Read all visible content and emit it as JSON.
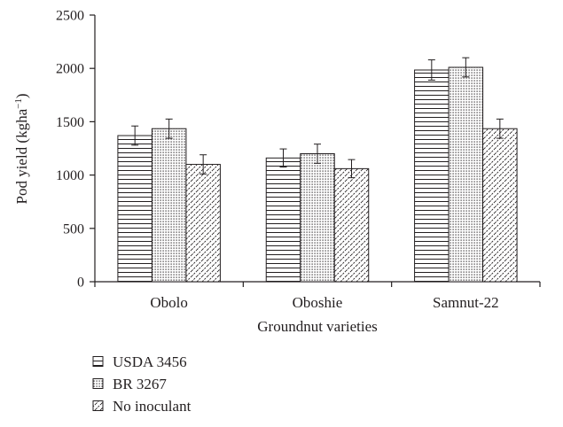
{
  "chart_data": {
    "type": "bar",
    "categories": [
      "Obolo",
      "Oboshie",
      "Samnut-22"
    ],
    "series": [
      {
        "name": "USDA 3456",
        "values": [
          1370,
          1160,
          1985
        ],
        "errors": [
          90,
          85,
          95
        ],
        "pattern": "horizontal-lines"
      },
      {
        "name": "BR 3267",
        "values": [
          1435,
          1200,
          2010
        ],
        "errors": [
          90,
          90,
          90
        ],
        "pattern": "dots"
      },
      {
        "name": "No inoculant",
        "values": [
          1100,
          1060,
          1435
        ],
        "errors": [
          90,
          85,
          90
        ],
        "pattern": "diagonal-lines"
      }
    ],
    "xlabel": "Groundnut varieties",
    "ylabel": "Pod yield (kgha",
    "ylabel_superscript": "−1",
    "ylabel_close": ")",
    "ylim": [
      0,
      2500
    ],
    "yticks": [
      0,
      500,
      1000,
      1500,
      2000,
      2500
    ],
    "grid": false,
    "legend_position": "bottom-left",
    "colors": {
      "ink": "#231f20",
      "fill": "#ffffff"
    }
  }
}
